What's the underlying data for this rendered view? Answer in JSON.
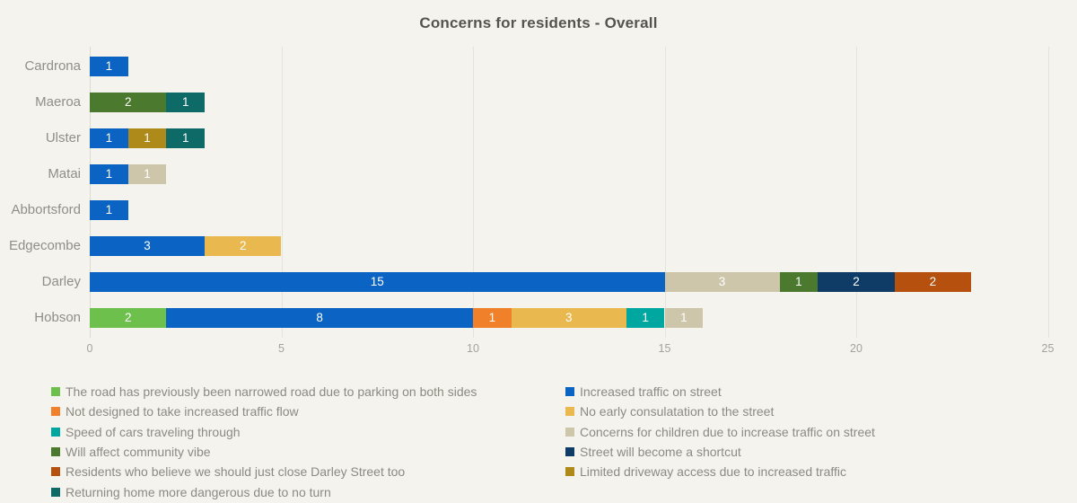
{
  "title": "Concerns for residents - Overall",
  "colors": {
    "background": "#f4f3ed",
    "title_text": "#55534c",
    "gridline": "#e4e3dc",
    "axis_tick_text": "#a3a29b",
    "category_text": "#8f8e87",
    "bar_value_text": "#ffffff",
    "legend_text": "#8b8a83"
  },
  "chart_data": {
    "type": "bar",
    "orientation": "horizontal",
    "stacked": true,
    "title": "Concerns for residents - Overall",
    "xlabel": "",
    "ylabel": "",
    "xlim": [
      0,
      25
    ],
    "xticks": [
      0,
      5,
      10,
      15,
      20,
      25
    ],
    "grid": "vertical",
    "categories": [
      "Cardrona",
      "Maeroa",
      "Ulster",
      "Matai",
      "Abbortsford",
      "Edgecombe",
      "Darley",
      "Hobson"
    ],
    "series": [
      {
        "name": "The road has previously been narrowed road due to parking on both sides",
        "color": "#6ec04d",
        "values": [
          0,
          0,
          0,
          0,
          0,
          0,
          0,
          2
        ]
      },
      {
        "name": "Increased traffic on street",
        "color": "#0b63c3",
        "values": [
          1,
          0,
          1,
          1,
          1,
          3,
          15,
          8
        ]
      },
      {
        "name": "Not designed to take increased traffic flow",
        "color": "#f0812a",
        "values": [
          0,
          0,
          0,
          0,
          0,
          0,
          0,
          1
        ]
      },
      {
        "name": "No early consulatation to the street",
        "color": "#e9b84f",
        "values": [
          0,
          0,
          0,
          0,
          0,
          2,
          0,
          3
        ]
      },
      {
        "name": "Speed of cars traveling through",
        "color": "#00a7a0",
        "values": [
          0,
          0,
          0,
          0,
          0,
          0,
          0,
          1
        ]
      },
      {
        "name": "Concerns for children due to increase traffic on street",
        "color": "#cdc6ab",
        "values": [
          0,
          0,
          0,
          1,
          0,
          0,
          3,
          1
        ]
      },
      {
        "name": "Will affect community vibe",
        "color": "#4b7a2f",
        "values": [
          0,
          2,
          0,
          0,
          0,
          0,
          1,
          0
        ]
      },
      {
        "name": "Street will become a shortcut",
        "color": "#0e3c66",
        "values": [
          0,
          0,
          0,
          0,
          0,
          0,
          2,
          0
        ]
      },
      {
        "name": "Residents who believe we should just close Darley Street too",
        "color": "#b5500f",
        "values": [
          0,
          0,
          0,
          0,
          0,
          0,
          2,
          0
        ]
      },
      {
        "name": "Limited driveway access due to increased traffic",
        "color": "#ae8a1b",
        "values": [
          0,
          0,
          1,
          0,
          0,
          0,
          0,
          0
        ]
      },
      {
        "name": "Returning home more dangerous due to no turn",
        "color": "#0d6a66",
        "values": [
          0,
          1,
          1,
          0,
          0,
          0,
          0,
          0
        ]
      }
    ],
    "legend_position": "bottom",
    "legend_columns": {
      "left": [
        0,
        2,
        4,
        6,
        8,
        10
      ],
      "right": [
        1,
        3,
        5,
        7,
        9
      ]
    }
  }
}
